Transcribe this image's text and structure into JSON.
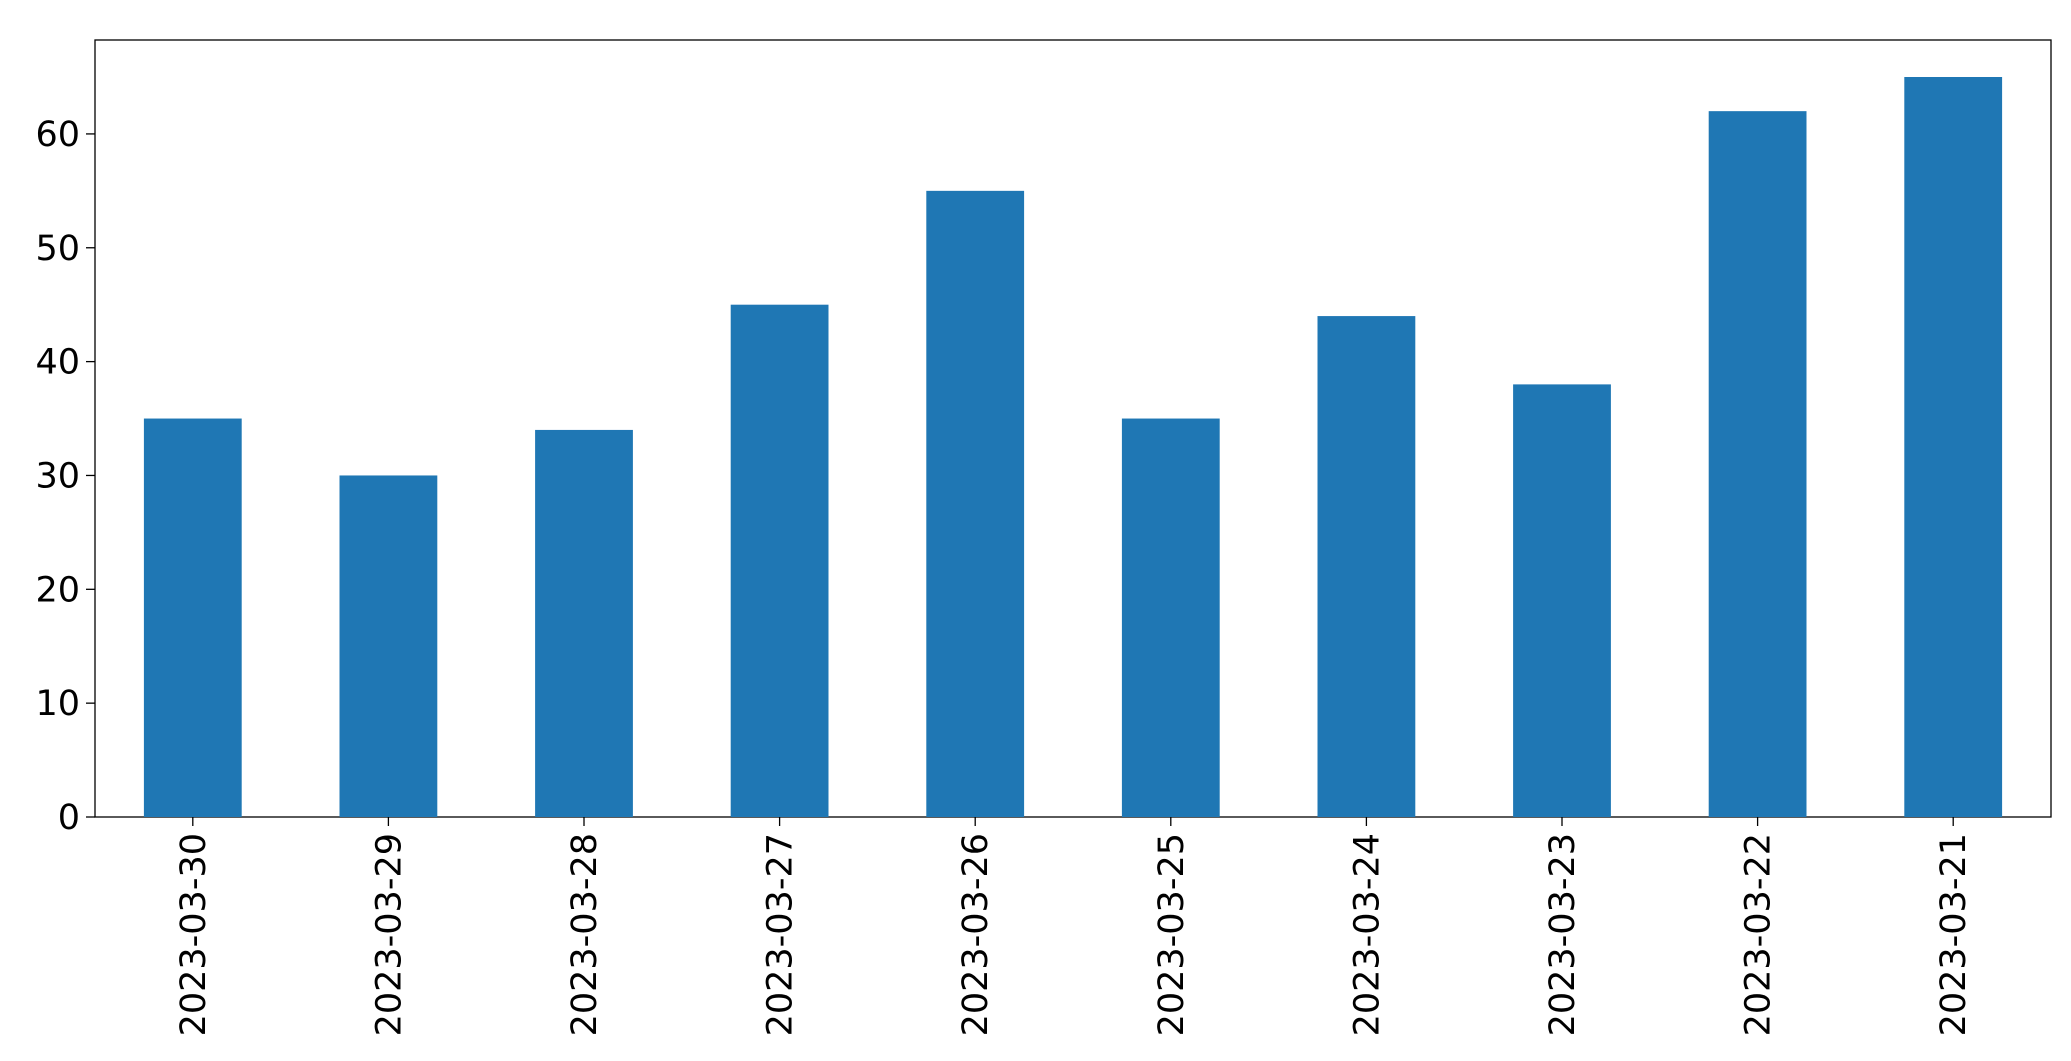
{
  "chart_data": {
    "type": "bar",
    "categories": [
      "2023-03-30",
      "2023-03-29",
      "2023-03-28",
      "2023-03-27",
      "2023-03-26",
      "2023-03-25",
      "2023-03-24",
      "2023-03-23",
      "2023-03-22",
      "2023-03-21"
    ],
    "values": [
      35,
      30,
      34,
      45,
      55,
      35,
      44,
      38,
      62,
      65
    ],
    "color": "#1f77b4",
    "ylim": [
      0,
      68.25
    ],
    "yticks": [
      0,
      10,
      20,
      30,
      40,
      50,
      60
    ],
    "grid": false
  }
}
